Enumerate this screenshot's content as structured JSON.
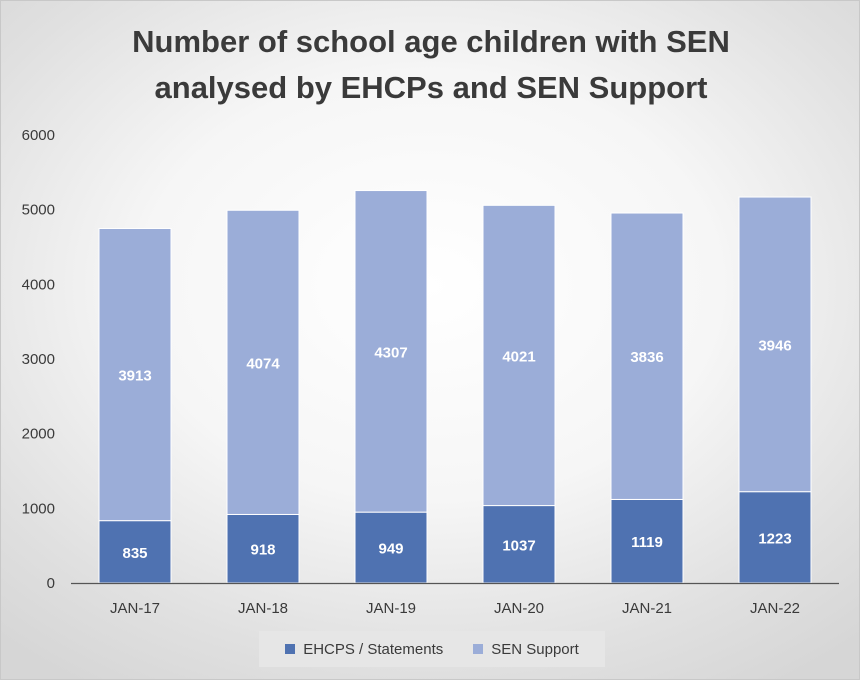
{
  "chart_data": {
    "type": "bar",
    "stacked": true,
    "title_lines": [
      "Number of school age children with SEN",
      "analysed by EHCPs and SEN Support"
    ],
    "categories": [
      "JAN-17",
      "JAN-18",
      "JAN-19",
      "JAN-20",
      "JAN-21",
      "JAN-22"
    ],
    "series": [
      {
        "name": "EHCPS / Statements",
        "values": [
          835,
          918,
          949,
          1037,
          1119,
          1223
        ],
        "color": "#4f72b1"
      },
      {
        "name": "SEN Support",
        "values": [
          3913,
          4074,
          4307,
          4021,
          3836,
          3946
        ],
        "color": "#9badd8"
      }
    ],
    "ylim": [
      0,
      6000
    ],
    "yticks": [
      0,
      1000,
      2000,
      3000,
      4000,
      5000,
      6000
    ],
    "grid": false,
    "legend_position": "bottom",
    "data_labels": true
  }
}
